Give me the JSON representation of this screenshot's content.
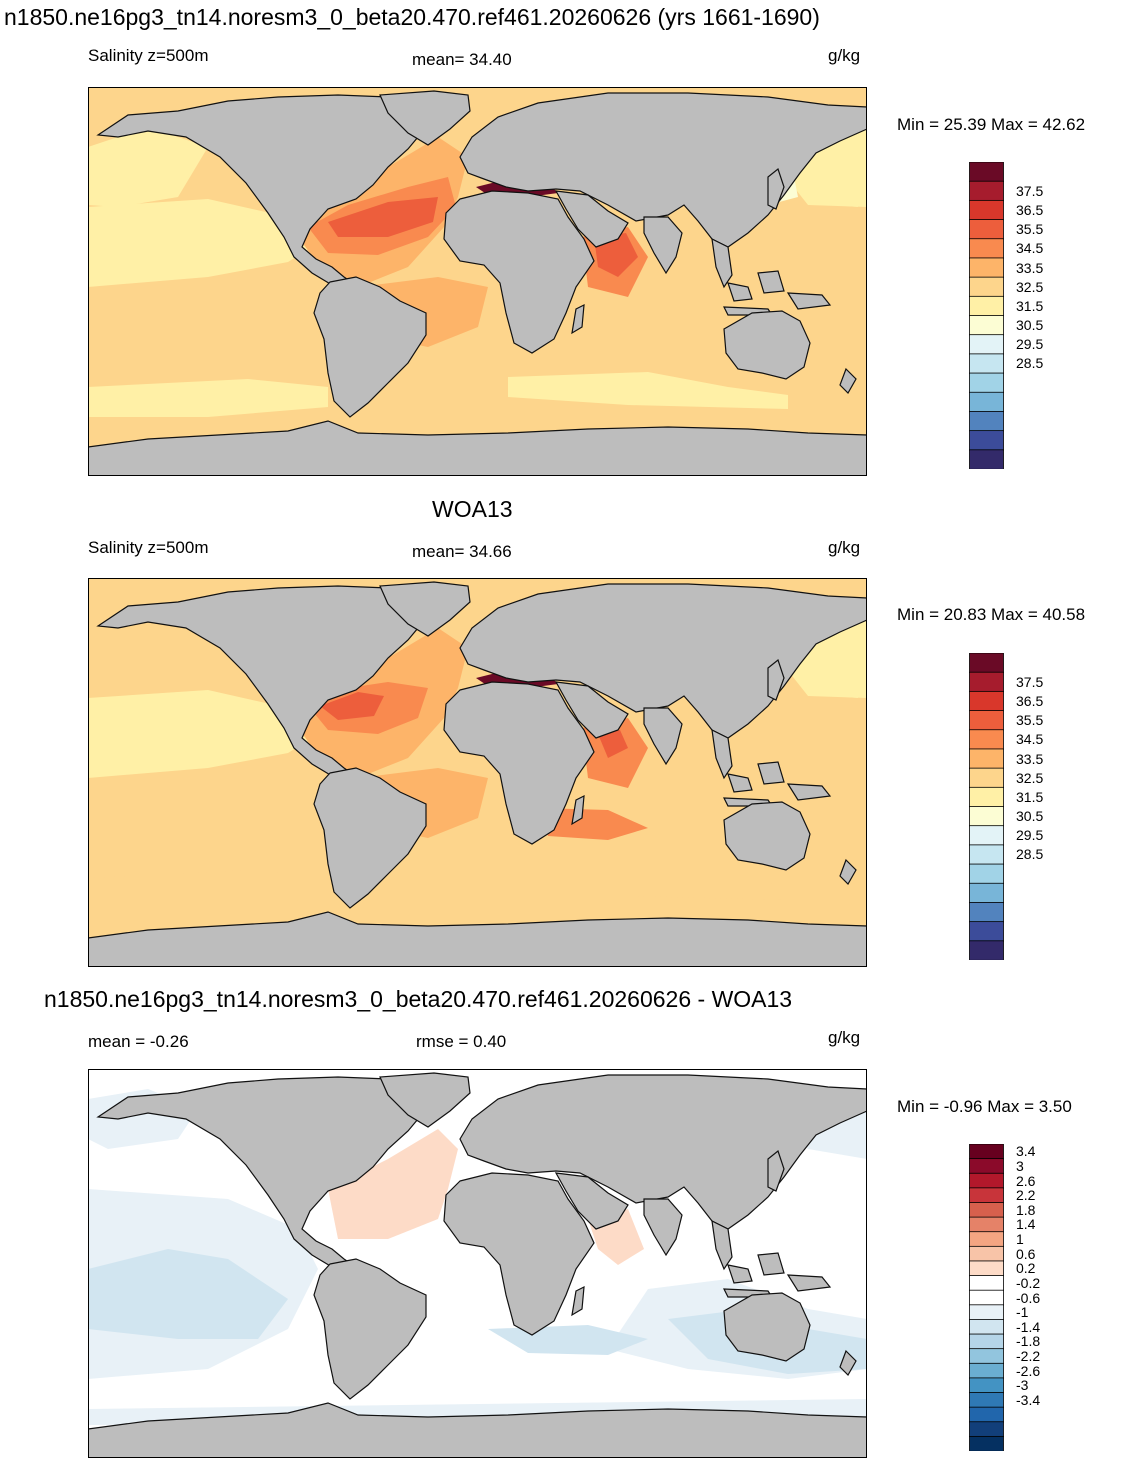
{
  "panels": [
    {
      "id": "model",
      "title": "n1850.ne16pg3_tn14.noresm3_0_beta20.470.ref461.20260626 (yrs 1661-1690)",
      "left_label": "Salinity z=500m",
      "center_label": "mean=  34.40",
      "units": "g/kg",
      "minmax": "Min =  25.39 Max =  42.62",
      "palette": "salinity",
      "colorbar_ticks": [
        "37.5",
        "36.5",
        "35.5",
        "34.5",
        "33.5",
        "32.5",
        "31.5",
        "30.5",
        "29.5",
        "28.5"
      ]
    },
    {
      "id": "obs",
      "title": "WOA13",
      "left_label": "Salinity z=500m",
      "center_label": "mean=  34.66",
      "units": "g/kg",
      "minmax": "Min =  20.83 Max =  40.58",
      "palette": "salinity",
      "colorbar_ticks": [
        "37.5",
        "36.5",
        "35.5",
        "34.5",
        "33.5",
        "32.5",
        "31.5",
        "30.5",
        "29.5",
        "28.5"
      ]
    },
    {
      "id": "diff",
      "title": "n1850.ne16pg3_tn14.noresm3_0_beta20.470.ref461.20260626 - WOA13",
      "left_label": "mean =  -0.26",
      "center_label": "rmse =   0.40",
      "units": "g/kg",
      "minmax": "Min =  -0.96 Max =   3.50",
      "palette": "difference",
      "colorbar_ticks": [
        "3.4",
        "3",
        "2.6",
        "2.2",
        "1.8",
        "1.4",
        "1",
        "0.6",
        "0.2",
        "-0.2",
        "-0.6",
        "-1",
        "-1.4",
        "-1.8",
        "-2.2",
        "-2.6",
        "-3",
        "-3.4"
      ]
    }
  ],
  "colors": {
    "land": "#bdbdbd",
    "salinity_scale": [
      "#6a0a26",
      "#a61c2d",
      "#d9372b",
      "#ed5e3c",
      "#f98a4f",
      "#fdb469",
      "#fdd58c",
      "#fff0a6",
      "#fcfdd4",
      "#e3f3f7",
      "#c6e6f1",
      "#a1d3e7",
      "#78b5d8",
      "#5283be",
      "#3c4c9a",
      "#332a6a"
    ],
    "difference_scale": [
      "#67001f",
      "#8b0a2a",
      "#b2182b",
      "#c8343a",
      "#d6604d",
      "#e58268",
      "#f4a582",
      "#f8c4a8",
      "#fddbc7",
      "#ffffff",
      "#ffffff",
      "#e8f1f7",
      "#d1e5f0",
      "#b5d5e8",
      "#92c5de",
      "#6aaed1",
      "#4393c3",
      "#2f79b5",
      "#2166ac",
      "#123f7a",
      "#053061"
    ]
  }
}
